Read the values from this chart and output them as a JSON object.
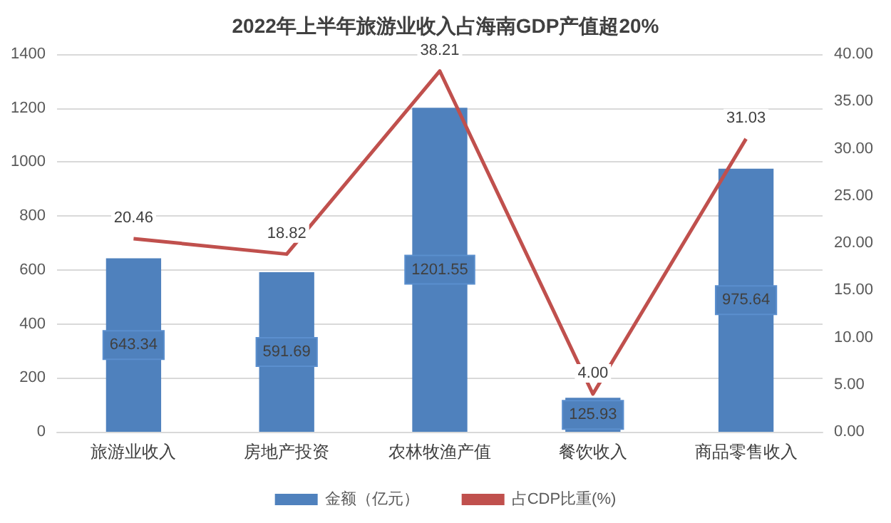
{
  "chart_data": {
    "type": "bar",
    "title": "2022年上半年旅游业收入占海南GDP产值超20%",
    "categories": [
      "旅游业收入",
      "房地产投资",
      "农林牧渔产值",
      "餐饮收入",
      "商品零售收入"
    ],
    "series": [
      {
        "name": "金额（亿元）",
        "color": "#4f81bd",
        "values": [
          643.34,
          591.69,
          1201.55,
          125.93,
          975.64
        ],
        "value_labels": [
          "643.34",
          "591.69",
          "1201.55",
          "125.93",
          "975.64"
        ]
      },
      {
        "name": "占CDP比重(%)",
        "type": "line",
        "axis": "y2",
        "color": "#c0504d",
        "values": [
          20.46,
          18.82,
          38.21,
          4.0,
          31.03
        ],
        "value_labels": [
          "20.46",
          "18.82",
          "38.21",
          "4.00",
          "31.03"
        ]
      }
    ],
    "ylim": [
      0,
      1400
    ],
    "yticks": [
      0,
      200,
      400,
      600,
      800,
      1000,
      1200,
      1400
    ],
    "y2lim": [
      0,
      40
    ],
    "y2ticks": [
      {
        "value": 0,
        "label": "0.00"
      },
      {
        "value": 5,
        "label": "5.00"
      },
      {
        "value": 10,
        "label": "10.00"
      },
      {
        "value": 15,
        "label": "15.00"
      },
      {
        "value": 20,
        "label": "20.00"
      },
      {
        "value": 25,
        "label": "25.00"
      },
      {
        "value": 30,
        "label": "30.00"
      },
      {
        "value": 35,
        "label": "35.00"
      },
      {
        "value": 40,
        "label": "40.00"
      }
    ],
    "grid": "y",
    "legend": "bottom",
    "marker": "none"
  }
}
